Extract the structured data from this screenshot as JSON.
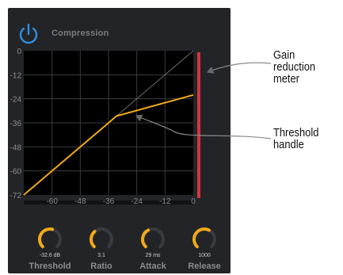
{
  "plugin": {
    "title": "Compression",
    "power_icon": "power-icon",
    "accent_color": "#f2a917",
    "meter_color": "#d63440",
    "graph": {
      "y_ticks": [
        "0",
        "-12",
        "-24",
        "-36",
        "-48",
        "-60",
        "-72"
      ],
      "x_ticks": [
        "-60",
        "-48",
        "-36",
        "-24",
        "-12",
        "0"
      ]
    },
    "knobs": [
      {
        "name": "Threshold",
        "value": "-32.6  dB",
        "level": 0.55
      },
      {
        "name": "Ratio",
        "value": "3.1",
        "level": 0.35
      },
      {
        "name": "Attack",
        "value": "29  ms",
        "level": 0.4
      },
      {
        "name": "Release",
        "value": "1000",
        "level": 0.6
      }
    ]
  },
  "annotations": {
    "gain_reduction": [
      "Gain reduction",
      "meter"
    ],
    "threshold_handle": [
      "Threshold",
      "handle"
    ]
  }
}
